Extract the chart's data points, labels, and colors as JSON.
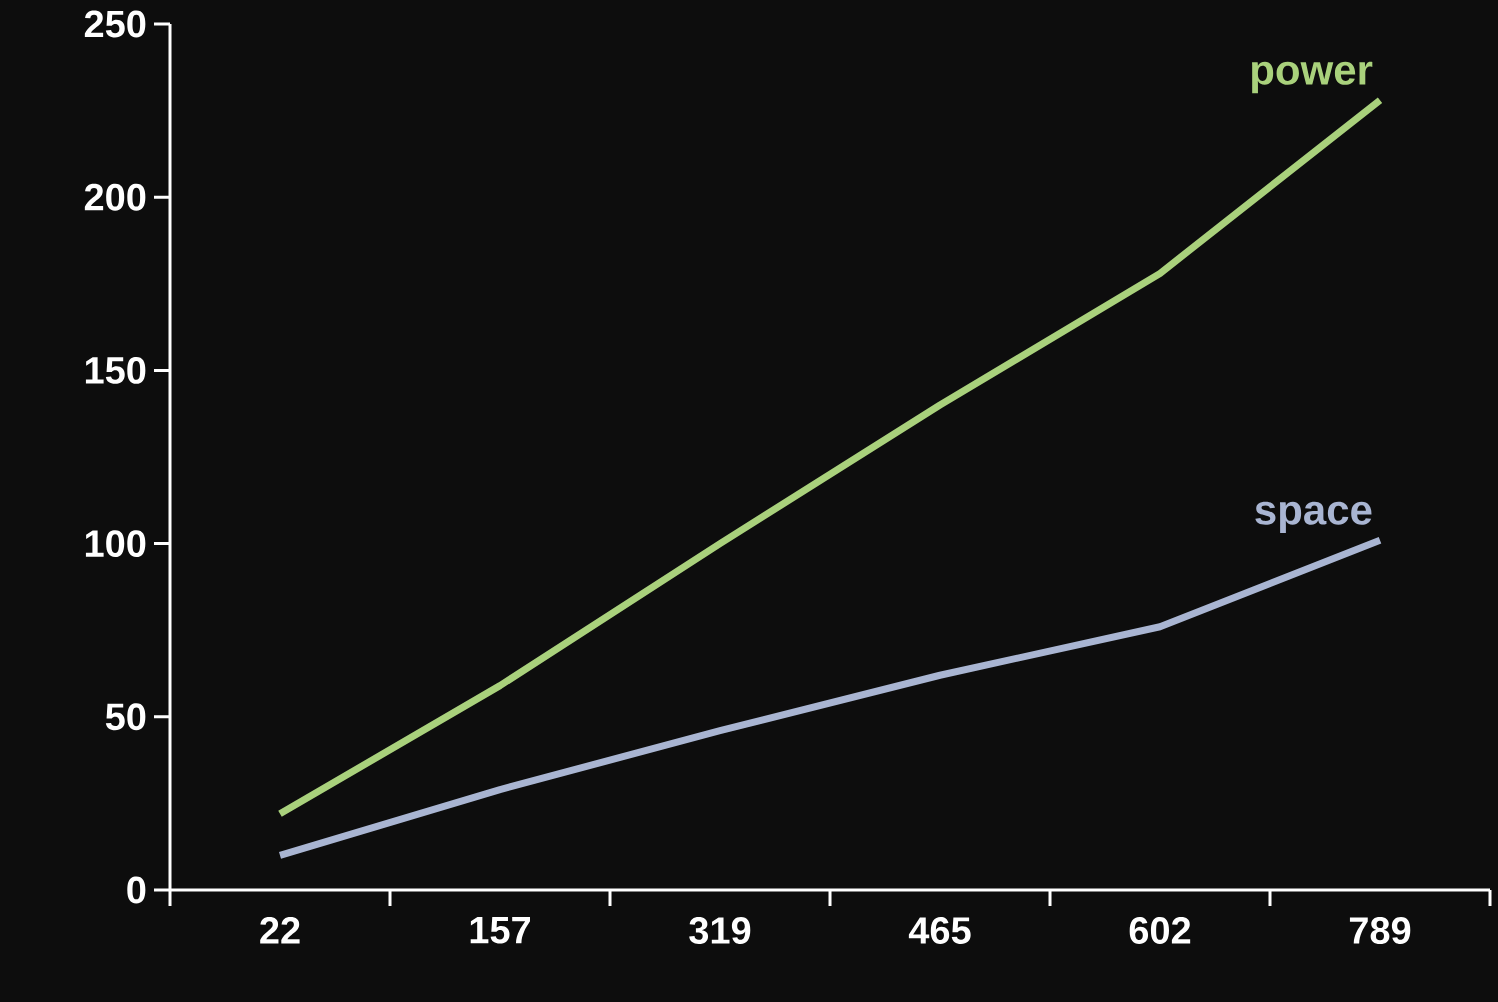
{
  "chart_data": {
    "type": "line",
    "categories": [
      "22",
      "157",
      "319",
      "465",
      "602",
      "789"
    ],
    "series": [
      {
        "name": "power",
        "color": "#a9d17c",
        "values": [
          22,
          59,
          100,
          140,
          178,
          228
        ]
      },
      {
        "name": "space",
        "color": "#a9b5d2",
        "values": [
          10,
          29,
          46,
          62,
          76,
          101
        ]
      }
    ],
    "ylim": [
      0,
      250
    ],
    "yticks": [
      0,
      50,
      100,
      150,
      200,
      250
    ],
    "grid": false,
    "legend": false
  }
}
